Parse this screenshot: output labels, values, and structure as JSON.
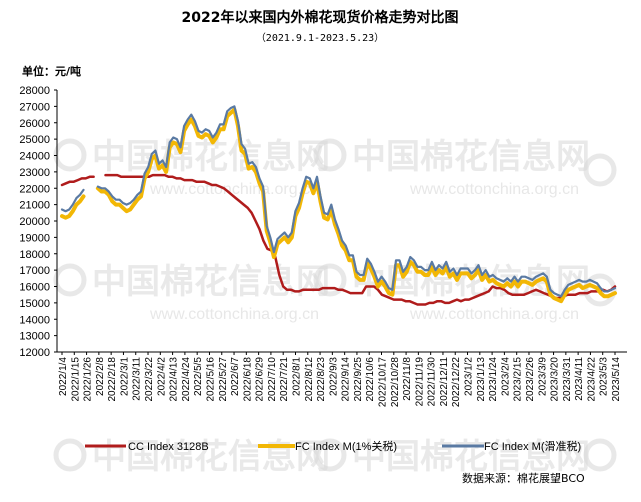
{
  "chart_data": {
    "type": "line",
    "title": "2022年以来国内外棉花现货价格走势对比图",
    "subtitle": "（2021.9.1-2023.5.23）",
    "unit_label": "单位：元/吨",
    "source": "数据来源：棉花展望BCO",
    "watermark": {
      "text": "中国棉花信息网",
      "url": "www.cottonchina.org.cn"
    },
    "ylim": [
      12000,
      28000
    ],
    "yticks": [
      12000,
      13000,
      14000,
      15000,
      16000,
      17000,
      18000,
      19000,
      20000,
      21000,
      22000,
      23000,
      24000,
      25000,
      26000,
      27000,
      28000
    ],
    "x_ticks": [
      "2022/1/4",
      "2022/1/15",
      "2022/1/26",
      "2022/2/8",
      "2022/2/18",
      "2022/3/1",
      "2022/3/11",
      "2022/3/22",
      "2022/4/2",
      "2022/4/13",
      "2022/4/24",
      "2022/5/5",
      "2022/5/16",
      "2022/5/27",
      "2022/6/7",
      "2022/6/18",
      "2022/6/29",
      "2022/7/10",
      "2022/7/21",
      "2022/8/1",
      "2022/8/12",
      "2022/8/23",
      "2022/9/3",
      "2022/9/14",
      "2022/9/25",
      "2022/10/6",
      "2022/10/17",
      "2022/10/28",
      "2022/11/8",
      "2022/11/19",
      "2022/11/30",
      "2022/12/11",
      "2022/12/22",
      "2023/1/2",
      "2023/1/13",
      "2023/1/24",
      "2023/2/4",
      "2023/2/15",
      "2023/2/26",
      "2023/3/9",
      "2023/3/20",
      "2023/3/31",
      "2023/4/11",
      "2023/4/22",
      "2023/5/3",
      "2023/5/14"
    ],
    "grid": false,
    "legend_position": "bottom",
    "series": [
      {
        "name": "CC Index 3128B",
        "color": "#b01c1c",
        "values": [
          22200,
          22300,
          22400,
          22400,
          22500,
          22600,
          22600,
          22700,
          22700,
          null,
          null,
          22800,
          22800,
          22800,
          22800,
          22700,
          22700,
          22700,
          22700,
          22700,
          22700,
          22700,
          22700,
          22800,
          22800,
          22800,
          22800,
          22700,
          22700,
          22600,
          22600,
          22500,
          22500,
          22500,
          22400,
          22400,
          22400,
          22300,
          22200,
          22200,
          22100,
          22000,
          21800,
          21600,
          21400,
          21200,
          21000,
          20800,
          20500,
          20000,
          19500,
          18800,
          18300,
          18200,
          17800,
          16700,
          16000,
          15800,
          15800,
          15700,
          15700,
          15800,
          15800,
          15800,
          15800,
          15800,
          15900,
          15900,
          15900,
          15900,
          15800,
          15800,
          15700,
          15600,
          15600,
          15600,
          15600,
          16000,
          16000,
          16000,
          15800,
          15500,
          15400,
          15300,
          15200,
          15200,
          15200,
          15100,
          15100,
          15000,
          14900,
          14900,
          14900,
          15000,
          15000,
          15100,
          15100,
          15000,
          15000,
          15100,
          15200,
          15100,
          15200,
          15200,
          15300,
          15400,
          15500,
          15600,
          15700,
          16000,
          15900,
          15900,
          15800,
          15600,
          15500,
          15500,
          15500,
          15500,
          15600,
          15700,
          15800,
          15700,
          15600,
          15500,
          15400,
          15300,
          15300,
          15400,
          15500,
          15500,
          15500,
          15600,
          15600,
          15600,
          15700,
          15700,
          15700,
          15800,
          15700,
          15800,
          16000
        ]
      },
      {
        "name": "FC Index M(1%关税)",
        "color": "#f2b705",
        "values": [
          20300,
          20200,
          20300,
          20600,
          21000,
          21200,
          21500,
          null,
          21700,
          null,
          22000,
          21800,
          21800,
          21600,
          21200,
          21000,
          21000,
          20800,
          20600,
          20700,
          21000,
          21300,
          21500,
          22600,
          23000,
          23800,
          24000,
          23200,
          23400,
          23000,
          24500,
          24800,
          24700,
          24200,
          25500,
          25900,
          26200,
          25800,
          25200,
          25100,
          25300,
          25200,
          24800,
          25100,
          25600,
          25600,
          26400,
          26600,
          26800,
          25800,
          24300,
          24100,
          23200,
          23300,
          23000,
          22300,
          21800,
          19400,
          18700,
          17800,
          18600,
          18800,
          19000,
          18700,
          19000,
          20300,
          20800,
          21700,
          22400,
          22300,
          21700,
          22400,
          21200,
          20200,
          20100,
          20700,
          19800,
          19200,
          18500,
          18200,
          17600,
          17600,
          16600,
          16400,
          16400,
          17400,
          17100,
          16600,
          16000,
          16300,
          16000,
          15600,
          15500,
          17300,
          17300,
          16600,
          16900,
          17500,
          17300,
          16900,
          16900,
          16700,
          16700,
          17200,
          16700,
          17000,
          16800,
          17200,
          16600,
          16800,
          16400,
          16800,
          16800,
          16800,
          16500,
          16700,
          17000,
          16400,
          16700,
          16300,
          16400,
          16200,
          16100,
          16000,
          16200,
          16000,
          16300,
          16000,
          16300,
          16300,
          16200,
          16100,
          16300,
          16400,
          16500,
          16300,
          15500,
          15300,
          15200,
          15100,
          15500,
          15800,
          15900,
          16000,
          16100,
          15900,
          16000,
          16100,
          16000,
          15900,
          15600,
          15400,
          15400,
          15500,
          15600
        ]
      },
      {
        "name": "FC Index M(滑准税)",
        "color": "#5a7aa3",
        "values": [
          20700,
          20600,
          20700,
          21000,
          21400,
          21600,
          21900,
          null,
          21800,
          null,
          22100,
          22000,
          22000,
          21800,
          21500,
          21300,
          21300,
          21100,
          21000,
          21100,
          21300,
          21600,
          21800,
          22900,
          23300,
          24100,
          24300,
          23500,
          23700,
          23300,
          24800,
          25100,
          25000,
          24500,
          25800,
          26200,
          26500,
          26100,
          25500,
          25400,
          25600,
          25500,
          25100,
          25400,
          25900,
          25900,
          26700,
          26900,
          27000,
          26100,
          24700,
          24400,
          23500,
          23600,
          23300,
          22600,
          22100,
          19700,
          19000,
          18100,
          18900,
          19100,
          19300,
          19000,
          19300,
          20600,
          21100,
          22000,
          22700,
          22600,
          22000,
          22700,
          21500,
          20500,
          20400,
          21000,
          20100,
          19500,
          18800,
          18500,
          17900,
          17900,
          16900,
          16700,
          16700,
          17700,
          17400,
          16900,
          16300,
          16600,
          16300,
          15900,
          15800,
          17600,
          17600,
          16900,
          17200,
          17800,
          17600,
          17200,
          17200,
          17000,
          17000,
          17500,
          17000,
          17300,
          17100,
          17500,
          16900,
          17100,
          16700,
          17100,
          17100,
          17100,
          16800,
          17000,
          17300,
          16700,
          17000,
          16600,
          16700,
          16500,
          16400,
          16300,
          16500,
          16300,
          16600,
          16300,
          16600,
          16600,
          16500,
          16400,
          16600,
          16700,
          16800,
          16600,
          15800,
          15600,
          15500,
          15400,
          15800,
          16100,
          16200,
          16300,
          16400,
          16300,
          16300,
          16400,
          16300,
          16200,
          15900,
          15700,
          15700,
          15800,
          15900
        ]
      }
    ]
  }
}
